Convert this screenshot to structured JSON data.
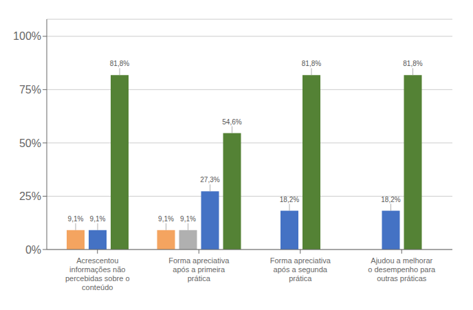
{
  "chart_data": {
    "type": "bar",
    "categories": [
      "Acrescentou\ninformações não\npercebidas sobre o\nconteúdo",
      "Forma apreciativa\napós a primeira\nprática",
      "Forma apreciativa\napós a segunda\nprática",
      "Ajudou a melhorar\no desempenho para\noutras práticas"
    ],
    "series": [
      {
        "color": "#F4A460",
        "values": [
          9.1,
          9.1,
          null,
          null
        ],
        "value_labels": [
          "9,1%",
          "9,1%",
          null,
          null
        ]
      },
      {
        "color": "#B0B0B0",
        "values": [
          null,
          9.1,
          null,
          null
        ],
        "value_labels": [
          null,
          "9,1%",
          null,
          null
        ]
      },
      {
        "color": "#4472C4",
        "values": [
          9.1,
          27.3,
          18.2,
          18.2
        ],
        "value_labels": [
          "9,1%",
          "27,3%",
          "18,2%",
          "18,2%"
        ]
      },
      {
        "color": "#548235",
        "values": [
          81.8,
          54.6,
          81.8,
          81.8
        ],
        "value_labels": [
          "81,8%",
          "54,6%",
          "81,8%",
          "81,8%"
        ]
      }
    ],
    "ylim": [
      0,
      108
    ],
    "yticks": [
      {
        "value": 0,
        "label": "0%"
      },
      {
        "value": 25,
        "label": "25%"
      },
      {
        "value": 50,
        "label": "50%"
      },
      {
        "value": 75,
        "label": "75%"
      },
      {
        "value": 100,
        "label": "100%"
      }
    ],
    "grid": true,
    "data_labels": true
  }
}
